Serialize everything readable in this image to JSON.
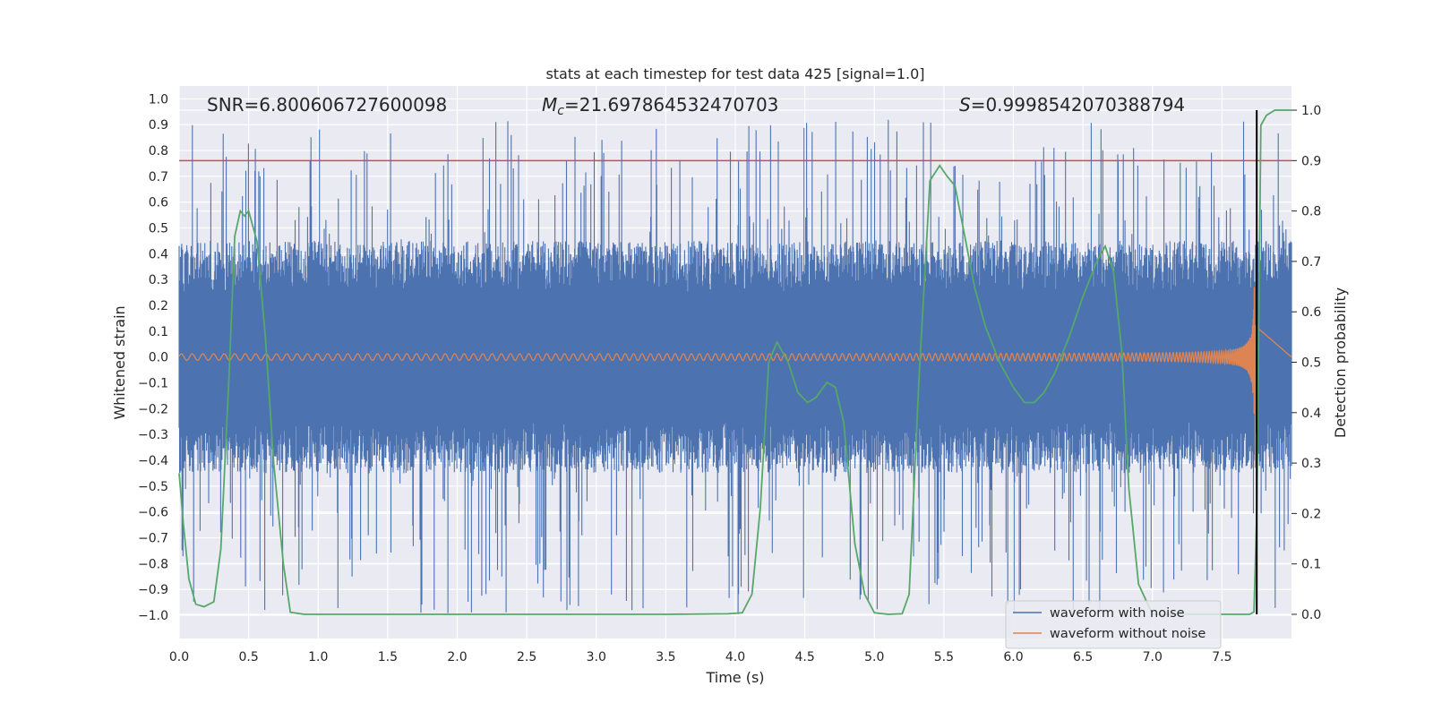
{
  "chart_data": {
    "type": "line",
    "title": "stats at each timestep for test data 425 [signal=1.0]",
    "xlabel": "Time (s)",
    "ylabel": "Whitened strain",
    "y2label": "Detection probability",
    "xlim": [
      0.0,
      8.0
    ],
    "ylim": [
      -1.09,
      1.05
    ],
    "y2lim": [
      -0.048,
      1.048
    ],
    "xticks": [
      0.0,
      0.5,
      1.0,
      1.5,
      2.0,
      2.5,
      3.0,
      3.5,
      4.0,
      4.5,
      5.0,
      5.5,
      6.0,
      6.5,
      7.0,
      7.5
    ],
    "xtick_labels": [
      "0.0",
      "0.5",
      "1.0",
      "1.5",
      "2.0",
      "2.5",
      "3.0",
      "3.5",
      "4.0",
      "4.5",
      "5.0",
      "5.5",
      "6.0",
      "6.5",
      "7.0",
      "7.5"
    ],
    "yticks": [
      1.0,
      0.9,
      0.8,
      0.7,
      0.6,
      0.5,
      0.4,
      0.3,
      0.2,
      0.1,
      0.0,
      -0.1,
      -0.2,
      -0.3,
      -0.4,
      -0.5,
      -0.6,
      -0.7,
      -0.8,
      -0.9,
      -1.0
    ],
    "ytick_labels": [
      "1.0",
      "0.9",
      "0.8",
      "0.7",
      "0.6",
      "0.5",
      "0.4",
      "0.3",
      "0.2",
      "0.1",
      "0.0",
      "−0.1",
      "−0.2",
      "−0.3",
      "−0.4",
      "−0.5",
      "−0.6",
      "−0.7",
      "−0.8",
      "−0.9",
      "−1.0"
    ],
    "y2ticks": [
      1.0,
      0.9,
      0.8,
      0.7,
      0.6,
      0.5,
      0.4,
      0.3,
      0.2,
      0.1,
      0.0
    ],
    "y2tick_labels": [
      "1.0",
      "0.9",
      "0.8",
      "0.7",
      "0.6",
      "0.5",
      "0.4",
      "0.3",
      "0.2",
      "0.1",
      "0.0"
    ],
    "grid": true,
    "legend_position": "lower-right",
    "annotations": {
      "snr": "SNR=6.800606727600098",
      "mc_symbol": "M",
      "mc_sub": "c",
      "mc_value": "=21.697864532470703",
      "s_symbol": "S",
      "s_value": "=0.9998542070388794"
    },
    "threshold_y2": 0.9,
    "event_time": 7.75,
    "series": [
      {
        "name": "waveform with noise",
        "color": "#4c72b0",
        "axis": "left",
        "kind": "noise",
        "envelope_typical": [
          -0.45,
          0.45
        ],
        "envelope_extreme": [
          -1.0,
          0.92
        ]
      },
      {
        "name": "waveform without noise",
        "color": "#dd8452",
        "axis": "left",
        "kind": "chirp",
        "merger_time": 7.74,
        "peak_amplitude": 0.43,
        "early_amplitude": 0.012
      },
      {
        "name": "detection probability",
        "color": "#55a868",
        "axis": "right",
        "x": [
          0.0,
          0.03,
          0.07,
          0.12,
          0.18,
          0.25,
          0.3,
          0.36,
          0.4,
          0.44,
          0.47,
          0.5,
          0.56,
          0.62,
          0.68,
          0.75,
          0.8,
          0.9,
          1.0,
          2.0,
          3.0,
          3.5,
          3.95,
          4.05,
          4.12,
          4.18,
          4.24,
          4.3,
          4.38,
          4.45,
          4.52,
          4.58,
          4.66,
          4.72,
          4.78,
          4.86,
          4.93,
          5.0,
          5.1,
          5.2,
          5.25,
          5.32,
          5.4,
          5.47,
          5.52,
          5.58,
          5.65,
          5.72,
          5.8,
          5.9,
          6.0,
          6.08,
          6.15,
          6.22,
          6.3,
          6.4,
          6.5,
          6.6,
          6.66,
          6.72,
          6.78,
          6.83,
          6.9,
          7.0,
          7.2,
          7.4,
          7.7,
          7.73,
          7.75,
          7.78,
          7.82,
          7.88,
          7.94,
          8.0
        ],
        "values": [
          0.28,
          0.18,
          0.07,
          0.02,
          0.015,
          0.025,
          0.13,
          0.48,
          0.75,
          0.8,
          0.79,
          0.8,
          0.74,
          0.55,
          0.3,
          0.1,
          0.004,
          0.0,
          0.0,
          0.0,
          0.0,
          0.0,
          0.001,
          0.003,
          0.04,
          0.21,
          0.5,
          0.54,
          0.5,
          0.44,
          0.42,
          0.43,
          0.46,
          0.45,
          0.38,
          0.14,
          0.04,
          0.003,
          0.0,
          0.001,
          0.04,
          0.46,
          0.86,
          0.89,
          0.87,
          0.85,
          0.75,
          0.65,
          0.57,
          0.5,
          0.45,
          0.42,
          0.42,
          0.44,
          0.48,
          0.55,
          0.63,
          0.7,
          0.73,
          0.68,
          0.52,
          0.25,
          0.06,
          0.0,
          0.0,
          0.0,
          0.0,
          0.005,
          0.2,
          0.97,
          0.99,
          1.0,
          1.0,
          1.0
        ]
      }
    ]
  }
}
